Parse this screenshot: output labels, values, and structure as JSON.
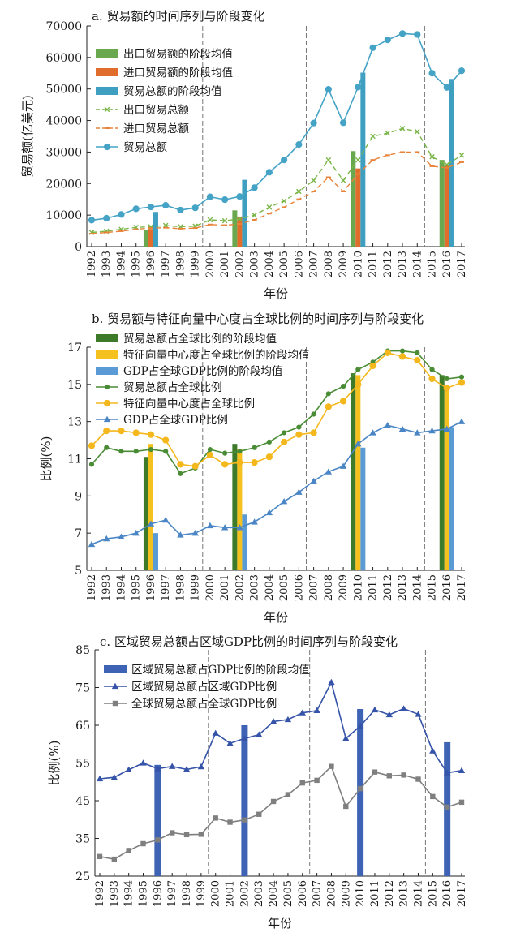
{
  "chart_data": [
    {
      "id": "a",
      "type": "bar",
      "title": "a. 贸易额的时间序列与阶段变化",
      "xlabel": "年份",
      "ylabel": "贸易额(亿美元)",
      "ylim": [
        0,
        70000
      ],
      "yticks": [
        0,
        10000,
        20000,
        30000,
        40000,
        50000,
        60000,
        70000
      ],
      "x": [
        1992,
        1993,
        1994,
        1995,
        1996,
        1997,
        1998,
        1999,
        2000,
        2001,
        2002,
        2003,
        2004,
        2005,
        2006,
        2007,
        2008,
        2009,
        2010,
        2011,
        2012,
        2013,
        2014,
        2015,
        2016,
        2017
      ],
      "phase_dividers": [
        1999.5,
        2006.5,
        2014.5
      ],
      "legend_position": "top-left",
      "bars": [
        {
          "name": "出口贸易额的阶段均值",
          "color": "#6aa84f",
          "offset": -0.33,
          "points": [
            [
              1996,
              5400
            ],
            [
              2002,
              11500
            ],
            [
              2010,
              30300
            ],
            [
              2016,
              27500
            ]
          ]
        },
        {
          "name": "进口贸易额的阶段均值",
          "color": "#e06d2b",
          "offset": 0,
          "points": [
            [
              1996,
              5600
            ],
            [
              2002,
              9500
            ],
            [
              2010,
              24800
            ],
            [
              2016,
              25800
            ]
          ]
        },
        {
          "name": "贸易总额的阶段均值",
          "color": "#3f9fc0",
          "offset": 0.33,
          "points": [
            [
              1996,
              11000
            ],
            [
              2002,
              21200
            ],
            [
              2010,
              55200
            ],
            [
              2016,
              53200
            ]
          ]
        }
      ],
      "lines": [
        {
          "name": "出口贸易总额",
          "color": "#7ab648",
          "style": "dashed",
          "marker": "x",
          "values": [
            4500,
            4900,
            5500,
            6100,
            6300,
            6700,
            6300,
            6500,
            8500,
            8200,
            8800,
            10000,
            12500,
            14500,
            17500,
            21000,
            27500,
            21000,
            27500,
            35000,
            36000,
            37500,
            36500,
            28500,
            26000,
            29000
          ]
        },
        {
          "name": "进口贸易总额",
          "color": "#e8833a",
          "style": "dashed",
          "marker": "dash",
          "values": [
            4100,
            4500,
            4900,
            5500,
            5900,
            6000,
            5700,
            5900,
            7000,
            6800,
            7200,
            8500,
            10500,
            12500,
            15000,
            17500,
            22000,
            17500,
            23000,
            27500,
            29000,
            30000,
            30000,
            25500,
            25000,
            26800
          ]
        },
        {
          "name": "贸易总额",
          "color": "#45a3c6",
          "style": "solid",
          "marker": "circle",
          "values": [
            8400,
            9000,
            10200,
            12000,
            12600,
            13100,
            11600,
            12300,
            15800,
            14900,
            15900,
            18700,
            23600,
            27500,
            32400,
            39200,
            49900,
            39300,
            50600,
            63100,
            65600,
            67600,
            67300,
            55000,
            50500,
            55800
          ]
        }
      ]
    },
    {
      "id": "b",
      "type": "bar",
      "title": "b. 贸易额与特征向量中心度占全球比例的时间序列与阶段变化",
      "xlabel": "年份",
      "ylabel": "比例(%)",
      "ylim": [
        5,
        17
      ],
      "yticks": [
        5,
        7,
        9,
        11,
        13,
        15,
        17
      ],
      "x": [
        1992,
        1993,
        1994,
        1995,
        1996,
        1997,
        1998,
        1999,
        2000,
        2001,
        2002,
        2003,
        2004,
        2005,
        2006,
        2007,
        2008,
        2009,
        2010,
        2011,
        2012,
        2013,
        2014,
        2015,
        2016,
        2017
      ],
      "phase_dividers": [
        1999.5,
        2006.5,
        2014.5
      ],
      "legend_position": "top-left",
      "bars": [
        {
          "name": "贸易总额占全球比例的阶段均值",
          "color": "#3d7a2a",
          "offset": -0.33,
          "points": [
            [
              1996,
              11.1
            ],
            [
              2002,
              11.8
            ],
            [
              2010,
              15.6
            ],
            [
              2016,
              15.5
            ]
          ]
        },
        {
          "name": "特征向量中心度占全球比例的阶段均值",
          "color": "#f4c11e",
          "offset": 0,
          "points": [
            [
              1996,
              11.8
            ],
            [
              2002,
              11.5
            ],
            [
              2010,
              15.5
            ],
            [
              2016,
              14.9
            ]
          ]
        },
        {
          "name": "GDP占全球GDP比例的阶段均值",
          "color": "#5b9bd5",
          "offset": 0.33,
          "points": [
            [
              1996,
              7.0
            ],
            [
              2002,
              8.0
            ],
            [
              2010,
              11.6
            ],
            [
              2016,
              12.7
            ]
          ]
        }
      ],
      "lines": [
        {
          "name": "贸易总额占全球比例",
          "color": "#4a8c35",
          "style": "solid",
          "marker": "circle-small",
          "values": [
            10.7,
            11.6,
            11.4,
            11.4,
            11.5,
            11.4,
            10.2,
            10.5,
            11.5,
            11.3,
            11.4,
            11.6,
            11.9,
            12.4,
            12.7,
            13.4,
            14.5,
            14.9,
            15.8,
            16.2,
            16.8,
            16.8,
            16.7,
            15.8,
            15.3,
            15.4
          ]
        },
        {
          "name": "特征向量中心度占全球比例",
          "color": "#f4b81c",
          "style": "solid",
          "marker": "circle",
          "values": [
            11.7,
            12.5,
            12.5,
            12.4,
            12.3,
            12.0,
            10.7,
            10.6,
            11.2,
            10.7,
            10.8,
            10.8,
            11.1,
            11.9,
            12.3,
            12.4,
            13.8,
            14.1,
            15.0,
            16.0,
            16.7,
            16.5,
            16.3,
            15.3,
            14.8,
            15.1
          ]
        },
        {
          "name": "GDP占全球GDP比例",
          "color": "#4a86c5",
          "style": "solid",
          "marker": "triangle",
          "values": [
            6.4,
            6.7,
            6.8,
            7.0,
            7.5,
            7.7,
            6.9,
            7.0,
            7.4,
            7.3,
            7.3,
            7.6,
            8.1,
            8.7,
            9.2,
            9.8,
            10.3,
            10.6,
            11.8,
            12.4,
            12.8,
            12.6,
            12.4,
            12.5,
            12.6,
            13.0
          ]
        }
      ]
    },
    {
      "id": "c",
      "type": "bar",
      "title": "c. 区域贸易总额占区域GDP比例的时间序列与阶段变化",
      "xlabel": "年份",
      "ylabel": "比例(%)",
      "ylim": [
        25,
        85
      ],
      "yticks": [
        25,
        35,
        45,
        55,
        65,
        75,
        85
      ],
      "x": [
        1992,
        1993,
        1994,
        1995,
        1996,
        1997,
        1998,
        1999,
        2000,
        2001,
        2002,
        2003,
        2004,
        2005,
        2006,
        2007,
        2008,
        2009,
        2010,
        2011,
        2012,
        2013,
        2014,
        2015,
        2016,
        2017
      ],
      "phase_dividers": [
        1999.5,
        2006.5,
        2014.5
      ],
      "legend_position": "top-left",
      "bars": [
        {
          "name": "区域贸易总额占GDP比例的阶段均值",
          "color": "#3e63b5",
          "offset": 0,
          "points": [
            [
              1996,
              54.5
            ],
            [
              2002,
              65.0
            ],
            [
              2010,
              69.3
            ],
            [
              2016,
              60.5
            ]
          ]
        }
      ],
      "lines": [
        {
          "name": "区域贸易总额占区域GDP比例",
          "color": "#3553a8",
          "style": "solid",
          "marker": "triangle",
          "values": [
            50.8,
            51.2,
            53.2,
            55.0,
            53.5,
            54.1,
            53.3,
            54.0,
            62.9,
            60.2,
            61.5,
            62.5,
            66.0,
            66.5,
            68.3,
            68.9,
            76.4,
            61.5,
            64.8,
            69.1,
            67.8,
            69.4,
            67.9,
            58.2,
            52.4,
            53.0
          ]
        },
        {
          "name": "全球贸易总额占全球GDP比例",
          "color": "#7f7f7f",
          "style": "solid",
          "marker": "square",
          "values": [
            30.2,
            29.5,
            31.8,
            33.6,
            34.6,
            36.5,
            36.0,
            36.1,
            40.4,
            39.3,
            39.9,
            41.4,
            44.8,
            46.6,
            49.7,
            50.4,
            54.1,
            43.5,
            48.2,
            52.6,
            51.6,
            51.8,
            50.7,
            46.1,
            43.3,
            44.6
          ]
        }
      ]
    }
  ]
}
